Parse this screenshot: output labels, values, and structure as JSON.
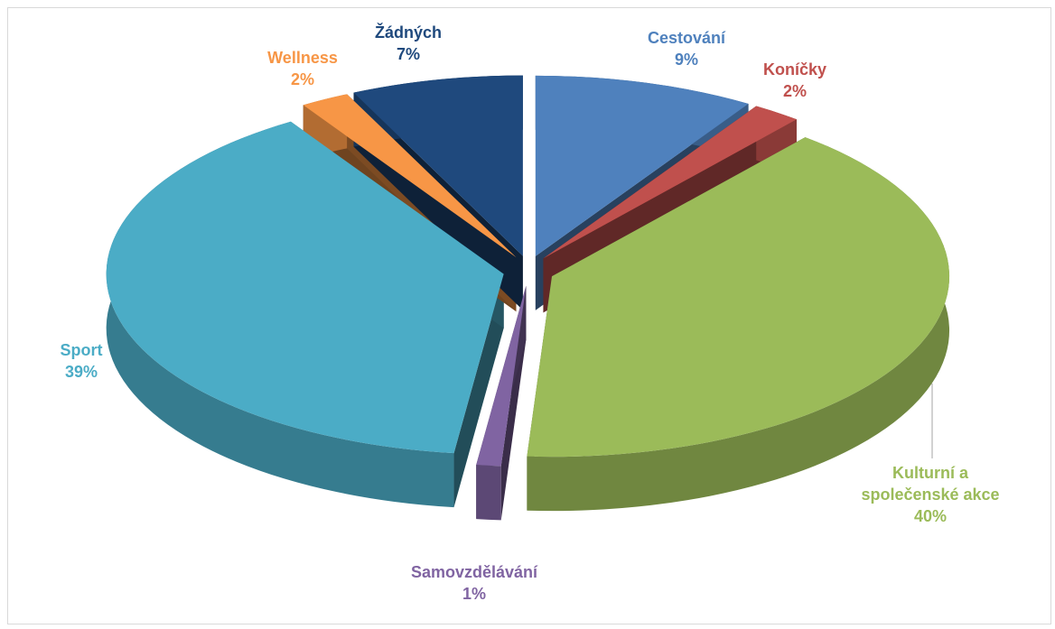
{
  "chart_data": {
    "type": "pie3d",
    "categories": [
      "Cestování",
      "Koníčky",
      "Kulturní a společenské akce",
      "Samovzdělávání",
      "Sport",
      "Wellness",
      "Žádných"
    ],
    "values": [
      9,
      2,
      40,
      1,
      39,
      2,
      7
    ],
    "value_labels": [
      "9%",
      "2%",
      "40%",
      "1%",
      "39%",
      "2%",
      "7%"
    ],
    "colors": [
      "#4f81bd",
      "#c0504d",
      "#9bbb59",
      "#8064a2",
      "#4bacc6",
      "#f79646",
      "#1f497d"
    ]
  }
}
